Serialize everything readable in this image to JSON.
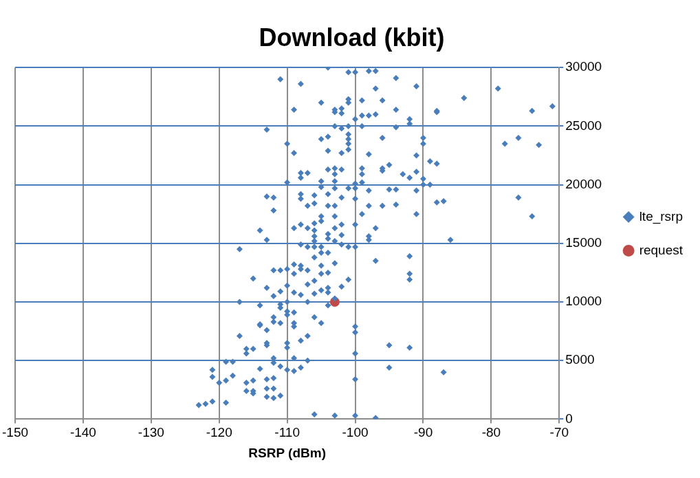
{
  "chart_data": {
    "type": "scatter",
    "title": "Download (kbit)",
    "xlabel": "RSRP (dBm)",
    "xlim": [
      -150,
      -70
    ],
    "xticks": [
      -150,
      -140,
      -130,
      -120,
      -110,
      -100,
      -90,
      -80,
      -70
    ],
    "ylim": [
      0,
      30000
    ],
    "yticks": [
      0,
      5000,
      10000,
      15000,
      20000,
      25000,
      30000
    ],
    "grid": true,
    "legend": "right",
    "series": [
      {
        "name": "lte_rsrp",
        "color": "#4a7ebb",
        "marker": "diamond",
        "x": [
          -104,
          -101,
          -100,
          -98,
          -97,
          -111,
          -94,
          -108,
          -91,
          -97,
          -101,
          -99,
          -101,
          -105,
          -96,
          -84,
          -79,
          -71,
          -74,
          -88,
          -88,
          -103,
          -103,
          -109,
          -100,
          -98,
          -97,
          -99,
          -94,
          -92,
          -92,
          -102,
          -102,
          -101,
          -113,
          -103,
          -102,
          -99,
          -94,
          -104,
          -105,
          -101,
          -101,
          -101,
          -101,
          -96,
          -90,
          -90,
          -110,
          -109,
          -104,
          -102,
          -103,
          -98,
          -91,
          -78,
          -76,
          -73,
          -89,
          -88,
          -96,
          -95,
          -96,
          -108,
          -107,
          -108,
          -104,
          -102,
          -103,
          -99,
          -99,
          -93,
          -92,
          -91,
          -90,
          -90,
          -89,
          -91,
          -110,
          -105,
          -105,
          -103,
          -100,
          -100,
          -99,
          -98,
          -95,
          -94,
          -104,
          -103,
          -101,
          -108,
          -108,
          -106,
          -113,
          -112,
          -102,
          -100,
          -98,
          -96,
          -94,
          -103,
          -104,
          -106,
          -107,
          -87,
          -88,
          -76,
          -112,
          -91,
          -74,
          -105,
          -105,
          -103,
          -99,
          -100,
          -106,
          -108,
          -107,
          -109,
          -102,
          -103,
          -97,
          -114,
          -106,
          -106,
          -104,
          -102,
          -113,
          -108,
          -106,
          -104,
          -98,
          -98,
          -100,
          -86,
          -117,
          -107,
          -106,
          -105,
          -103,
          -102,
          -101,
          -105,
          -104,
          -106,
          -92,
          -97,
          -108,
          -109,
          -108,
          -105,
          -103,
          -104,
          -112,
          -111,
          -110,
          -109,
          -115,
          -107,
          -105,
          -106,
          -101,
          -92,
          -92,
          -113,
          -110,
          -107,
          -104,
          -102,
          -111,
          -109,
          -105,
          -112,
          -108,
          -106,
          -104,
          -103,
          -117,
          -114,
          -111,
          -111,
          -110,
          -107,
          -104,
          -110,
          -110,
          -109,
          -112,
          -112,
          -111,
          -106,
          -105,
          -100,
          -100,
          -113,
          -114,
          -114,
          -109,
          -109,
          -117,
          -108,
          -107,
          -113,
          -110,
          -110,
          -113,
          -116,
          -115,
          -116,
          -119,
          -118,
          -112,
          -112,
          -109,
          -107,
          -108,
          -109,
          -114,
          -111,
          -110,
          -121,
          -121,
          -118,
          -119,
          -115,
          -113,
          -112,
          -120,
          -116,
          -113,
          -112,
          -115,
          -115,
          -116,
          -113,
          -112,
          -111,
          -123,
          -122,
          -121,
          -119,
          -100,
          -95,
          -95,
          -92,
          -87,
          -100,
          -106,
          -103,
          -100,
          -97
        ],
        "values": [
          30000,
          29600,
          29600,
          29700,
          29700,
          29000,
          29100,
          28600,
          28400,
          28200,
          27300,
          27200,
          27000,
          27000,
          27200,
          27400,
          28200,
          26700,
          26300,
          26300,
          26200,
          26400,
          26200,
          26400,
          25600,
          25900,
          26000,
          25900,
          26400,
          25600,
          25200,
          26500,
          26100,
          25000,
          24700,
          25000,
          24800,
          25000,
          24900,
          24100,
          23900,
          24300,
          23900,
          23500,
          23000,
          24000,
          24000,
          23500,
          23500,
          22700,
          22900,
          22700,
          21400,
          22600,
          22500,
          23500,
          24000,
          23400,
          22000,
          21800,
          21400,
          21700,
          21200,
          21000,
          21000,
          20600,
          21300,
          21300,
          20900,
          21400,
          20900,
          20900,
          20600,
          21100,
          20500,
          20000,
          20000,
          19500,
          20200,
          20300,
          19800,
          20300,
          20100,
          19700,
          20200,
          19500,
          19600,
          19600,
          19200,
          19700,
          19700,
          19200,
          18800,
          19100,
          19000,
          18900,
          18900,
          18800,
          18200,
          18200,
          18300,
          18200,
          18200,
          18400,
          18200,
          18600,
          18500,
          18900,
          17800,
          17500,
          17300,
          17300,
          16900,
          17300,
          17500,
          16600,
          16700,
          16600,
          16300,
          16300,
          16600,
          16300,
          16300,
          16100,
          16100,
          15600,
          15800,
          15700,
          15300,
          14900,
          15200,
          15400,
          15600,
          15300,
          14700,
          15300,
          14500,
          14700,
          14700,
          14700,
          15200,
          14900,
          14700,
          14200,
          14200,
          13800,
          13900,
          13500,
          13100,
          13200,
          12800,
          13100,
          13300,
          12500,
          12700,
          12700,
          12800,
          12400,
          12000,
          12700,
          12400,
          11800,
          11900,
          12400,
          11900,
          11200,
          11400,
          11500,
          11200,
          11300,
          10900,
          10800,
          11000,
          10500,
          10600,
          10700,
          10800,
          10300,
          10000,
          9700,
          9800,
          9500,
          10000,
          10000,
          9700,
          9200,
          8900,
          9100,
          8700,
          8300,
          8200,
          8700,
          8200,
          7900,
          7400,
          7600,
          8100,
          8000,
          8200,
          7900,
          7100,
          6700,
          7100,
          6300,
          6500,
          6100,
          6500,
          6000,
          6000,
          5600,
          4900,
          4900,
          5200,
          4800,
          5200,
          5000,
          4400,
          4100,
          4300,
          4500,
          4200,
          4200,
          3600,
          3700,
          3300,
          3300,
          3400,
          3500,
          3100,
          3100,
          2600,
          2600,
          2400,
          2200,
          2400,
          1900,
          1800,
          2000,
          1200,
          1300,
          1500,
          1400,
          3400,
          4400,
          6300,
          6100,
          4000,
          5600,
          400,
          300,
          300,
          100
        ]
      },
      {
        "name": "request",
        "color": "#be4b48",
        "marker": "circle",
        "x": [
          -103
        ],
        "values": [
          10000
        ]
      }
    ]
  }
}
